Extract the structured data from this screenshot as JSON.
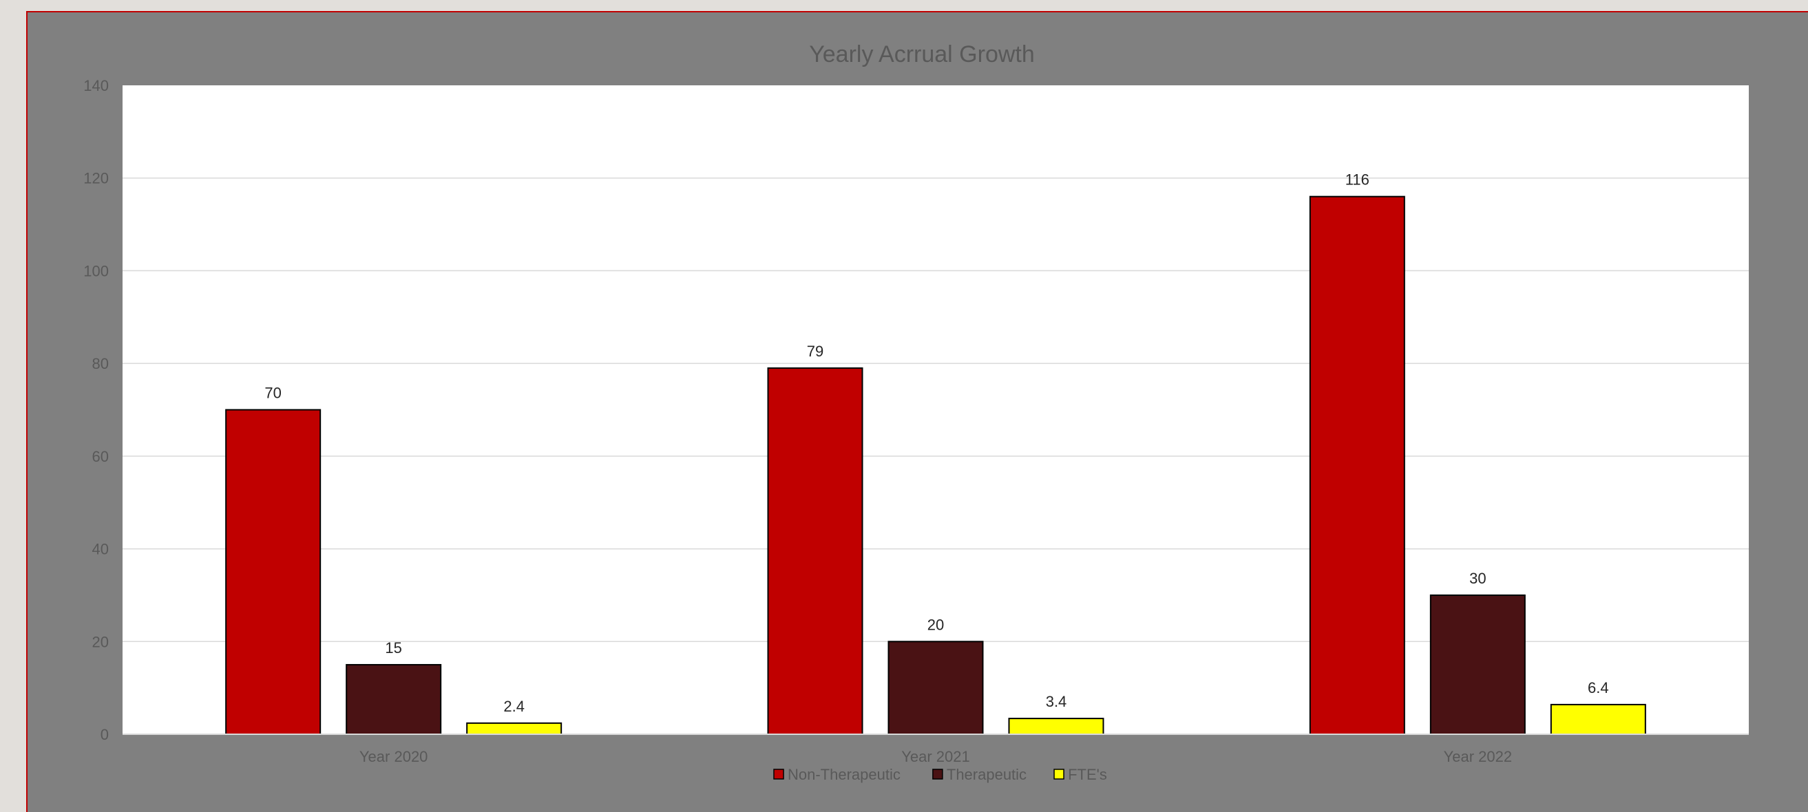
{
  "chart_data": {
    "type": "bar",
    "title": "Yearly Acrrual Growth",
    "xlabel": "",
    "ylabel": "",
    "categories": [
      "Year 2020",
      "Year 2021",
      "Year 2022"
    ],
    "series": [
      {
        "name": "Non-Therapeutic",
        "values": [
          70,
          79,
          116
        ],
        "color": "#c00000"
      },
      {
        "name": "Therapeutic",
        "values": [
          15,
          20,
          30
        ],
        "color": "#4a1214"
      },
      {
        "name": "FTE's",
        "values": [
          2.4,
          3.4,
          6.4
        ],
        "color": "#ffff00"
      }
    ],
    "ylim": [
      0,
      140
    ],
    "yticks": [
      0,
      20,
      40,
      60,
      80,
      100,
      120,
      140
    ],
    "grid": true,
    "legend": "bottom",
    "data_labels": true,
    "colors": {
      "frame_background": "#808080",
      "plot_background": "#ffffff",
      "frame_border": "#c00000",
      "gridline": "#d9d9d9"
    }
  }
}
